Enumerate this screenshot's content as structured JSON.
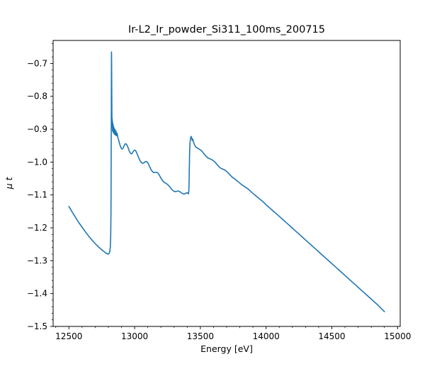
{
  "chart_data": {
    "type": "line",
    "title": "Ir-L2_Ir_powder_Si311_100ms_200715",
    "xlabel": "Energy [eV]",
    "ylabel": "μ t",
    "xlim": [
      12380,
      15020
    ],
    "ylim": [
      -1.5,
      -0.63
    ],
    "xtick_values": [
      12500,
      13000,
      13500,
      14000,
      14500,
      15000
    ],
    "xtick_labels": [
      "12500",
      "13000",
      "13500",
      "14000",
      "14500",
      "15000"
    ],
    "ytick_values": [
      -0.7,
      -0.8,
      -0.9,
      -1.0,
      -1.1,
      -1.2,
      -1.3,
      -1.4,
      -1.5
    ],
    "ytick_labels": [
      "−0.7",
      "−0.8",
      "−0.9",
      "−1.0",
      "−1.1",
      "−1.2",
      "−1.3",
      "−1.4",
      "−1.5"
    ],
    "x_minor_step": 100,
    "y_minor_step": 0.02,
    "grid": false,
    "legend": "none",
    "line_color": "#1f77b4",
    "line_width": 1.6,
    "series": [
      {
        "name": "mu_t",
        "points": [
          [
            12500,
            -1.135
          ],
          [
            12525,
            -1.152
          ],
          [
            12550,
            -1.168
          ],
          [
            12575,
            -1.184
          ],
          [
            12600,
            -1.198
          ],
          [
            12625,
            -1.212
          ],
          [
            12650,
            -1.225
          ],
          [
            12675,
            -1.237
          ],
          [
            12700,
            -1.248
          ],
          [
            12725,
            -1.258
          ],
          [
            12750,
            -1.267
          ],
          [
            12770,
            -1.273
          ],
          [
            12785,
            -1.278
          ],
          [
            12798,
            -1.28
          ],
          [
            12806,
            -1.278
          ],
          [
            12811,
            -1.272
          ],
          [
            12815,
            -1.258
          ],
          [
            12818,
            -1.225
          ],
          [
            12820,
            -1.155
          ],
          [
            12821,
            -1.06
          ],
          [
            12822,
            -0.93
          ],
          [
            12823,
            -0.78
          ],
          [
            12824,
            -0.665
          ],
          [
            12825,
            -0.7
          ],
          [
            12826,
            -0.78
          ],
          [
            12827,
            -0.855
          ],
          [
            12828,
            -0.885
          ],
          [
            12829,
            -0.868
          ],
          [
            12830,
            -0.895
          ],
          [
            12831,
            -0.875
          ],
          [
            12832,
            -0.905
          ],
          [
            12834,
            -0.882
          ],
          [
            12836,
            -0.908
          ],
          [
            12838,
            -0.888
          ],
          [
            12840,
            -0.912
          ],
          [
            12843,
            -0.895
          ],
          [
            12846,
            -0.915
          ],
          [
            12850,
            -0.9
          ],
          [
            12854,
            -0.918
          ],
          [
            12858,
            -0.905
          ],
          [
            12862,
            -0.92
          ],
          [
            12867,
            -0.912
          ],
          [
            12872,
            -0.925
          ],
          [
            12878,
            -0.932
          ],
          [
            12884,
            -0.942
          ],
          [
            12890,
            -0.95
          ],
          [
            12896,
            -0.956
          ],
          [
            12902,
            -0.96
          ],
          [
            12908,
            -0.96
          ],
          [
            12914,
            -0.956
          ],
          [
            12920,
            -0.95
          ],
          [
            12926,
            -0.946
          ],
          [
            12932,
            -0.944
          ],
          [
            12938,
            -0.946
          ],
          [
            12944,
            -0.95
          ],
          [
            12950,
            -0.956
          ],
          [
            12956,
            -0.963
          ],
          [
            12962,
            -0.969
          ],
          [
            12968,
            -0.973
          ],
          [
            12974,
            -0.975
          ],
          [
            12980,
            -0.974
          ],
          [
            12986,
            -0.97
          ],
          [
            12992,
            -0.966
          ],
          [
            12998,
            -0.964
          ],
          [
            13004,
            -0.964
          ],
          [
            13010,
            -0.967
          ],
          [
            13016,
            -0.972
          ],
          [
            13024,
            -0.98
          ],
          [
            13032,
            -0.988
          ],
          [
            13040,
            -0.995
          ],
          [
            13048,
            -1.0
          ],
          [
            13056,
            -1.003
          ],
          [
            13064,
            -1.004
          ],
          [
            13072,
            -1.002
          ],
          [
            13080,
            -0.999
          ],
          [
            13088,
            -0.998
          ],
          [
            13096,
            -1.0
          ],
          [
            13104,
            -1.005
          ],
          [
            13112,
            -1.012
          ],
          [
            13120,
            -1.019
          ],
          [
            13128,
            -1.025
          ],
          [
            13136,
            -1.029
          ],
          [
            13144,
            -1.032
          ],
          [
            13152,
            -1.032
          ],
          [
            13160,
            -1.031
          ],
          [
            13168,
            -1.031
          ],
          [
            13176,
            -1.033
          ],
          [
            13184,
            -1.037
          ],
          [
            13192,
            -1.043
          ],
          [
            13200,
            -1.049
          ],
          [
            13210,
            -1.055
          ],
          [
            13220,
            -1.06
          ],
          [
            13230,
            -1.063
          ],
          [
            13240,
            -1.065
          ],
          [
            13250,
            -1.068
          ],
          [
            13260,
            -1.072
          ],
          [
            13270,
            -1.077
          ],
          [
            13280,
            -1.082
          ],
          [
            13290,
            -1.086
          ],
          [
            13300,
            -1.089
          ],
          [
            13310,
            -1.09
          ],
          [
            13320,
            -1.089
          ],
          [
            13330,
            -1.088
          ],
          [
            13340,
            -1.089
          ],
          [
            13350,
            -1.092
          ],
          [
            13360,
            -1.095
          ],
          [
            13370,
            -1.097
          ],
          [
            13380,
            -1.097
          ],
          [
            13390,
            -1.095
          ],
          [
            13398,
            -1.093
          ],
          [
            13404,
            -1.094
          ],
          [
            13409,
            -1.097
          ],
          [
            13412,
            -1.09
          ],
          [
            13414,
            -1.065
          ],
          [
            13416,
            -1.02
          ],
          [
            13418,
            -0.975
          ],
          [
            13420,
            -0.948
          ],
          [
            13423,
            -0.934
          ],
          [
            13426,
            -0.926
          ],
          [
            13430,
            -0.922
          ],
          [
            13434,
            -0.927
          ],
          [
            13438,
            -0.934
          ],
          [
            13442,
            -0.93
          ],
          [
            13446,
            -0.937
          ],
          [
            13452,
            -0.944
          ],
          [
            13460,
            -0.951
          ],
          [
            13468,
            -0.955
          ],
          [
            13476,
            -0.957
          ],
          [
            13484,
            -0.959
          ],
          [
            13492,
            -0.961
          ],
          [
            13500,
            -0.963
          ],
          [
            13512,
            -0.967
          ],
          [
            13524,
            -0.973
          ],
          [
            13536,
            -0.979
          ],
          [
            13548,
            -0.984
          ],
          [
            13560,
            -0.988
          ],
          [
            13572,
            -0.99
          ],
          [
            13584,
            -0.992
          ],
          [
            13596,
            -0.995
          ],
          [
            13608,
            -0.999
          ],
          [
            13620,
            -1.004
          ],
          [
            13632,
            -1.01
          ],
          [
            13644,
            -1.015
          ],
          [
            13656,
            -1.019
          ],
          [
            13668,
            -1.021
          ],
          [
            13680,
            -1.023
          ],
          [
            13692,
            -1.026
          ],
          [
            13704,
            -1.03
          ],
          [
            13716,
            -1.035
          ],
          [
            13728,
            -1.04
          ],
          [
            13740,
            -1.045
          ],
          [
            13752,
            -1.049
          ],
          [
            13764,
            -1.052
          ],
          [
            13776,
            -1.056
          ],
          [
            13788,
            -1.06
          ],
          [
            13800,
            -1.064
          ],
          [
            13815,
            -1.069
          ],
          [
            13830,
            -1.073
          ],
          [
            13845,
            -1.077
          ],
          [
            13860,
            -1.081
          ],
          [
            13875,
            -1.086
          ],
          [
            13890,
            -1.092
          ],
          [
            13905,
            -1.097
          ],
          [
            13920,
            -1.102
          ],
          [
            13935,
            -1.107
          ],
          [
            13950,
            -1.112
          ],
          [
            13965,
            -1.117
          ],
          [
            13980,
            -1.122
          ],
          [
            14000,
            -1.13
          ],
          [
            14020,
            -1.137
          ],
          [
            14040,
            -1.144
          ],
          [
            14060,
            -1.151
          ],
          [
            14080,
            -1.158
          ],
          [
            14100,
            -1.165
          ],
          [
            14125,
            -1.174
          ],
          [
            14150,
            -1.183
          ],
          [
            14175,
            -1.192
          ],
          [
            14200,
            -1.201
          ],
          [
            14225,
            -1.21
          ],
          [
            14250,
            -1.219
          ],
          [
            14275,
            -1.228
          ],
          [
            14300,
            -1.237
          ],
          [
            14325,
            -1.246
          ],
          [
            14350,
            -1.255
          ],
          [
            14375,
            -1.264
          ],
          [
            14400,
            -1.273
          ],
          [
            14425,
            -1.282
          ],
          [
            14450,
            -1.291
          ],
          [
            14475,
            -1.3
          ],
          [
            14500,
            -1.309
          ],
          [
            14525,
            -1.318
          ],
          [
            14550,
            -1.327
          ],
          [
            14575,
            -1.336
          ],
          [
            14600,
            -1.345
          ],
          [
            14625,
            -1.354
          ],
          [
            14650,
            -1.363
          ],
          [
            14675,
            -1.372
          ],
          [
            14700,
            -1.381
          ],
          [
            14725,
            -1.39
          ],
          [
            14750,
            -1.399
          ],
          [
            14775,
            -1.408
          ],
          [
            14800,
            -1.417
          ],
          [
            14825,
            -1.426
          ],
          [
            14850,
            -1.435
          ],
          [
            14875,
            -1.445
          ],
          [
            14900,
            -1.455
          ]
        ]
      }
    ]
  }
}
